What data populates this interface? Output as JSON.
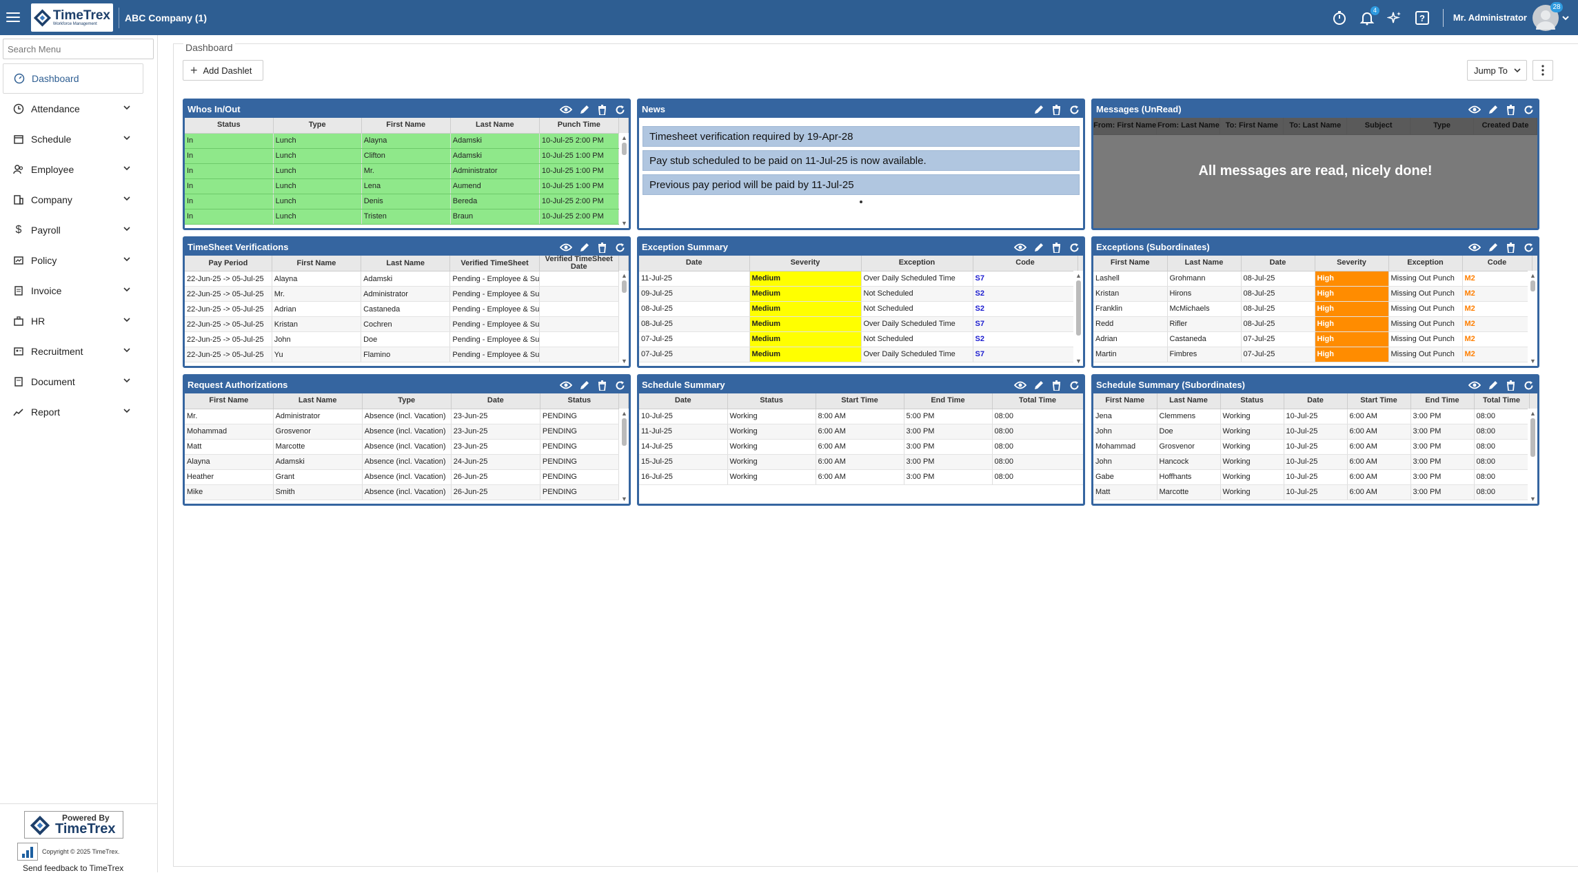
{
  "topbar": {
    "logo_text": "TimeTrex",
    "logo_sub": "Workforce Management",
    "company": "ABC Company (1)",
    "notif_count": "4",
    "user_name": "Mr. Administrator",
    "user_badge": "28"
  },
  "sidebar": {
    "search_placeholder": "Search Menu",
    "items": [
      {
        "label": "Dashboard",
        "icon": "dashboard-icon"
      },
      {
        "label": "Attendance",
        "icon": "clock-icon"
      },
      {
        "label": "Schedule",
        "icon": "calendar-icon"
      },
      {
        "label": "Employee",
        "icon": "people-icon"
      },
      {
        "label": "Company",
        "icon": "building-icon"
      },
      {
        "label": "Payroll",
        "icon": "dollar-icon"
      },
      {
        "label": "Policy",
        "icon": "policy-icon"
      },
      {
        "label": "Invoice",
        "icon": "invoice-icon"
      },
      {
        "label": "HR",
        "icon": "briefcase-icon"
      },
      {
        "label": "Recruitment",
        "icon": "recruitment-icon"
      },
      {
        "label": "Document",
        "icon": "document-icon"
      },
      {
        "label": "Report",
        "icon": "chart-line-icon"
      }
    ],
    "powered_by": "Powered By",
    "powered_brand": "TimeTrex",
    "copyright": "Copyright © 2025 TimeTrex.",
    "feedback": "Send feedback to TimeTrex"
  },
  "page": {
    "breadcrumb": "Dashboard",
    "add_dashlet": "Add Dashlet",
    "jump_to": "Jump To"
  },
  "whos": {
    "title": "Whos In/Out",
    "headers": [
      "Status",
      "Type",
      "First Name",
      "Last Name",
      "Punch Time"
    ],
    "rows": [
      [
        "In",
        "Lunch",
        "Alayna",
        "Adamski",
        "10-Jul-25 2:00 PM"
      ],
      [
        "In",
        "Lunch",
        "Clifton",
        "Adamski",
        "10-Jul-25 1:00 PM"
      ],
      [
        "In",
        "Lunch",
        "Mr.",
        "Administrator",
        "10-Jul-25 1:00 PM"
      ],
      [
        "In",
        "Lunch",
        "Lena",
        "Aumend",
        "10-Jul-25 1:00 PM"
      ],
      [
        "In",
        "Lunch",
        "Denis",
        "Bereda",
        "10-Jul-25 2:00 PM"
      ],
      [
        "In",
        "Lunch",
        "Tristen",
        "Braun",
        "10-Jul-25 2:00 PM"
      ]
    ]
  },
  "news": {
    "title": "News",
    "items": [
      "Timesheet verification required by 19-Apr-28",
      "Pay stub scheduled to be paid on 11-Jul-25 is now available.",
      "Previous pay period will be paid by 11-Jul-25"
    ]
  },
  "messages": {
    "title": "Messages (UnRead)",
    "headers": [
      "From: First Name",
      "From: Last Name",
      "To: First Name",
      "To: Last Name",
      "Subject",
      "Type",
      "Created Date"
    ],
    "empty_text": "All messages are read, nicely done!"
  },
  "timesheet": {
    "title": "TimeSheet Verifications",
    "headers": [
      "Pay Period",
      "First Name",
      "Last Name",
      "Verified TimeSheet",
      "Verified TimeSheet Date"
    ],
    "rows": [
      [
        "22-Jun-25 -> 05-Jul-25",
        "Alayna",
        "Adamski",
        "Pending - Employee & Su",
        ""
      ],
      [
        "22-Jun-25 -> 05-Jul-25",
        "Mr.",
        "Administrator",
        "Pending - Employee & Su",
        ""
      ],
      [
        "22-Jun-25 -> 05-Jul-25",
        "Adrian",
        "Castaneda",
        "Pending - Employee & Su",
        ""
      ],
      [
        "22-Jun-25 -> 05-Jul-25",
        "Kristan",
        "Cochren",
        "Pending - Employee & Su",
        ""
      ],
      [
        "22-Jun-25 -> 05-Jul-25",
        "John",
        "Doe",
        "Pending - Employee & Su",
        ""
      ],
      [
        "22-Jun-25 -> 05-Jul-25",
        "Yu",
        "Flamino",
        "Pending - Employee & Su",
        ""
      ]
    ]
  },
  "exception": {
    "title": "Exception Summary",
    "headers": [
      "Date",
      "Severity",
      "Exception",
      "Code"
    ],
    "rows": [
      [
        "11-Jul-25",
        "Medium",
        "Over Daily Scheduled Time",
        "S7"
      ],
      [
        "09-Jul-25",
        "Medium",
        "Not Scheduled",
        "S2"
      ],
      [
        "08-Jul-25",
        "Medium",
        "Not Scheduled",
        "S2"
      ],
      [
        "08-Jul-25",
        "Medium",
        "Over Daily Scheduled Time",
        "S7"
      ],
      [
        "07-Jul-25",
        "Medium",
        "Not Scheduled",
        "S2"
      ],
      [
        "07-Jul-25",
        "Medium",
        "Over Daily Scheduled Time",
        "S7"
      ]
    ]
  },
  "exsub": {
    "title": "Exceptions (Subordinates)",
    "headers": [
      "First Name",
      "Last Name",
      "Date",
      "Severity",
      "Exception",
      "Code"
    ],
    "rows": [
      [
        "Lashell",
        "Grohmann",
        "08-Jul-25",
        "High",
        "Missing Out Punch",
        "M2"
      ],
      [
        "Kristan",
        "Hirons",
        "08-Jul-25",
        "High",
        "Missing Out Punch",
        "M2"
      ],
      [
        "Franklin",
        "McMichaels",
        "08-Jul-25",
        "High",
        "Missing Out Punch",
        "M2"
      ],
      [
        "Redd",
        "Rifler",
        "08-Jul-25",
        "High",
        "Missing Out Punch",
        "M2"
      ],
      [
        "Adrian",
        "Castaneda",
        "07-Jul-25",
        "High",
        "Missing Out Punch",
        "M2"
      ],
      [
        "Martin",
        "Fimbres",
        "07-Jul-25",
        "High",
        "Missing Out Punch",
        "M2"
      ]
    ]
  },
  "requests": {
    "title": "Request Authorizations",
    "headers": [
      "First Name",
      "Last Name",
      "Type",
      "Date",
      "Status"
    ],
    "rows": [
      [
        "Mr.",
        "Administrator",
        "Absence (incl. Vacation)",
        "23-Jun-25",
        "PENDING"
      ],
      [
        "Mohammad",
        "Grosvenor",
        "Absence (incl. Vacation)",
        "23-Jun-25",
        "PENDING"
      ],
      [
        "Matt",
        "Marcotte",
        "Absence (incl. Vacation)",
        "23-Jun-25",
        "PENDING"
      ],
      [
        "Alayna",
        "Adamski",
        "Absence (incl. Vacation)",
        "24-Jun-25",
        "PENDING"
      ],
      [
        "Heather",
        "Grant",
        "Absence (incl. Vacation)",
        "26-Jun-25",
        "PENDING"
      ],
      [
        "Mike",
        "Smith",
        "Absence (incl. Vacation)",
        "26-Jun-25",
        "PENDING"
      ]
    ]
  },
  "schedule": {
    "title": "Schedule Summary",
    "headers": [
      "Date",
      "Status",
      "Start Time",
      "End Time",
      "Total Time"
    ],
    "rows": [
      [
        "10-Jul-25",
        "Working",
        "8:00 AM",
        "5:00 PM",
        "08:00"
      ],
      [
        "11-Jul-25",
        "Working",
        "6:00 AM",
        "3:00 PM",
        "08:00"
      ],
      [
        "14-Jul-25",
        "Working",
        "6:00 AM",
        "3:00 PM",
        "08:00"
      ],
      [
        "15-Jul-25",
        "Working",
        "6:00 AM",
        "3:00 PM",
        "08:00"
      ],
      [
        "16-Jul-25",
        "Working",
        "6:00 AM",
        "3:00 PM",
        "08:00"
      ]
    ]
  },
  "schedsub": {
    "title": "Schedule Summary (Subordinates)",
    "headers": [
      "First Name",
      "Last Name",
      "Status",
      "Date",
      "Start Time",
      "End Time",
      "Total Time"
    ],
    "rows": [
      [
        "Jena",
        "Clemmens",
        "Working",
        "10-Jul-25",
        "6:00 AM",
        "3:00 PM",
        "08:00"
      ],
      [
        "John",
        "Doe",
        "Working",
        "10-Jul-25",
        "6:00 AM",
        "3:00 PM",
        "08:00"
      ],
      [
        "Mohammad",
        "Grosvenor",
        "Working",
        "10-Jul-25",
        "6:00 AM",
        "3:00 PM",
        "08:00"
      ],
      [
        "John",
        "Hancock",
        "Working",
        "10-Jul-25",
        "6:00 AM",
        "3:00 PM",
        "08:00"
      ],
      [
        "Gabe",
        "Hoffhants",
        "Working",
        "10-Jul-25",
        "6:00 AM",
        "3:00 PM",
        "08:00"
      ],
      [
        "Matt",
        "Marcotte",
        "Working",
        "10-Jul-25",
        "6:00 AM",
        "3:00 PM",
        "08:00"
      ]
    ]
  },
  "colors": {
    "brand": "#2e5e92",
    "in_row": "#8fe88a",
    "medium": "#ffff00",
    "high": "#ff8c00"
  }
}
